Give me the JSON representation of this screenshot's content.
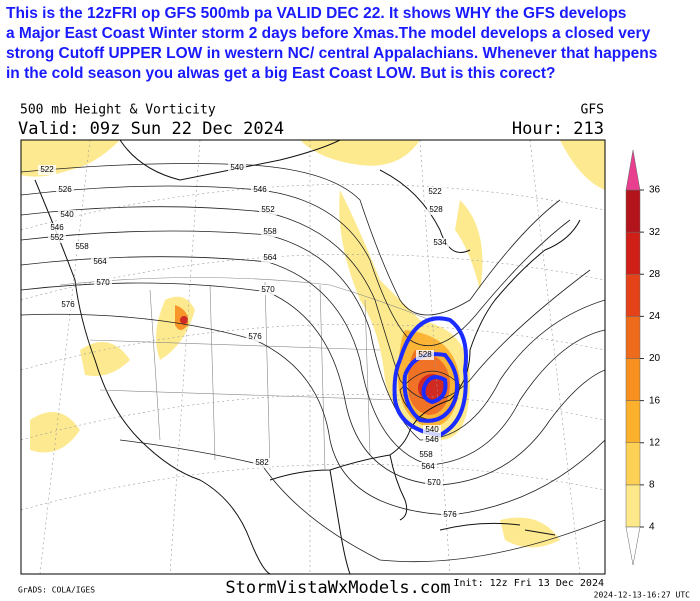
{
  "annotation": [
    "This is the 12zFRI op GFS 500mb pa VALID  DEC 22. It shows  WHY  the GFS develops",
    "a  Major East Coast Winter storm 2 days before Xmas.The model develops a closed very",
    " strong Cutoff UPPER LOW in western NC/ central Appalachians. Whenever that happens",
    " in the cold season you alwas get a  big East Coast LOW.   But is this corect?"
  ],
  "header": {
    "product": "500 mb Height & Vorticity",
    "model": "GFS",
    "valid": "Valid: 09z Sun 22 Dec 2024",
    "hour": "Hour: 213"
  },
  "contour_labels": [
    "522",
    "526",
    "540",
    "546",
    "552",
    "558",
    "564",
    "570",
    "576",
    "540",
    "546",
    "552",
    "558",
    "564",
    "570",
    "576",
    "582",
    "522",
    "528",
    "534",
    "528",
    "540",
    "546",
    "558",
    "564",
    "570",
    "576"
  ],
  "colorbar": {
    "ticks": [
      4,
      8,
      12,
      16,
      20,
      24,
      28,
      32,
      36
    ],
    "colors": [
      "#fde98a",
      "#fdd155",
      "#fcb12c",
      "#f7901e",
      "#ef6b1c",
      "#e64219",
      "#cf1f17",
      "#b3131b"
    ],
    "over_color": "#e8408e"
  },
  "footer": {
    "credit": "GrADS: COLA/IGES",
    "site": "StormVistaWxModels.com",
    "init": "Init: 12z Fri 13 Dec 2024",
    "stamp": "2024-12-13-16:27 UTC"
  }
}
